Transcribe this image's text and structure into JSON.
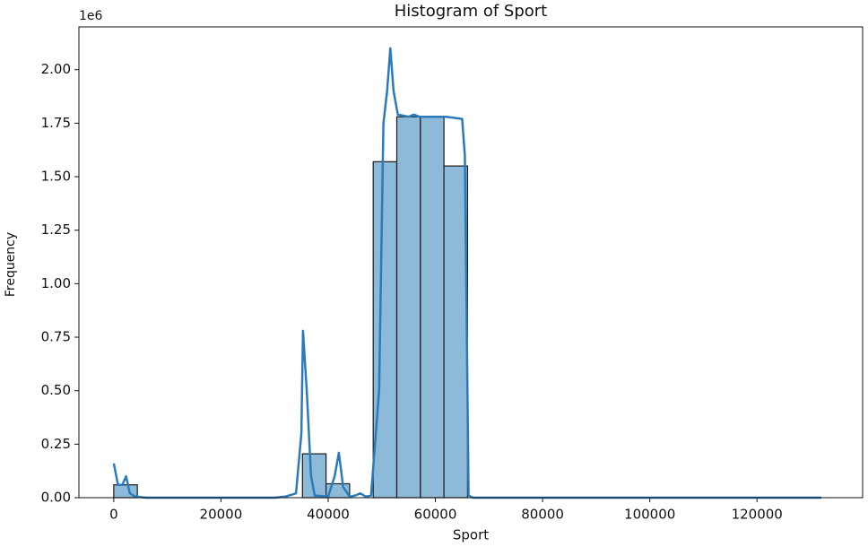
{
  "chart_data": {
    "type": "histogram",
    "title": "Histogram of Sport",
    "x_label": "Sport",
    "y_label": "Frequency",
    "y_offset_label": "1e6",
    "bins": [
      0,
      4400,
      8800,
      13200,
      17600,
      22000,
      26400,
      30800,
      35200,
      39600,
      44000,
      48400,
      52800,
      57200,
      61600,
      66000,
      70400,
      74800,
      79200,
      83600,
      88000,
      92400,
      96800,
      101200,
      105600,
      110000,
      114400,
      118800,
      123200,
      127600,
      132000
    ],
    "counts": [
      0.06,
      0,
      0,
      0,
      0,
      0,
      0,
      0,
      0.205,
      0.065,
      0,
      1.57,
      1.78,
      1.78,
      1.55,
      0,
      0,
      0,
      0,
      0,
      0,
      0,
      0,
      0,
      0,
      0,
      0,
      0,
      0,
      0
    ],
    "color": "#8ebad9",
    "edgecolor": "#1a1a1a",
    "kde": {
      "color": "#2b7bba",
      "x": [
        0,
        800,
        1600,
        2300,
        3000,
        4000,
        6000,
        30000,
        32000,
        34000,
        35000,
        35300,
        36000,
        36800,
        37500,
        40000,
        41200,
        42000,
        42800,
        44000,
        45000,
        46000,
        47000,
        48000,
        49500,
        50300,
        51000,
        51600,
        52200,
        53000,
        55000,
        56000,
        57000,
        60000,
        62000,
        65000,
        65500,
        66200,
        67000,
        132000
      ],
      "values": [
        0.16,
        0.06,
        0.06,
        0.1,
        0.02,
        0.005,
        0,
        0,
        0.005,
        0.02,
        0.3,
        0.78,
        0.5,
        0.1,
        0.01,
        0.005,
        0.1,
        0.21,
        0.05,
        0.005,
        0.01,
        0.02,
        0.005,
        0.01,
        0.5,
        1.75,
        1.9,
        2.1,
        1.9,
        1.79,
        1.78,
        1.79,
        1.78,
        1.78,
        1.78,
        1.77,
        1.6,
        0.01,
        0,
        0
      ]
    },
    "xlim": [
      -6500,
      139700
    ],
    "xticks": [
      0,
      20000,
      40000,
      60000,
      80000,
      100000,
      120000
    ],
    "ylim": [
      0,
      2.2
    ],
    "yticks": [
      {
        "value": 0,
        "label": "0.00"
      },
      {
        "value": 0.25,
        "label": "0.25"
      },
      {
        "value": 0.5,
        "label": "0.50"
      },
      {
        "value": 0.75,
        "label": "0.75"
      },
      {
        "value": 1,
        "label": "1.00"
      },
      {
        "value": 1.25,
        "label": "1.25"
      },
      {
        "value": 1.5,
        "label": "1.50"
      },
      {
        "value": 1.75,
        "label": "1.75"
      },
      {
        "value": 2,
        "label": "2.00"
      }
    ]
  }
}
